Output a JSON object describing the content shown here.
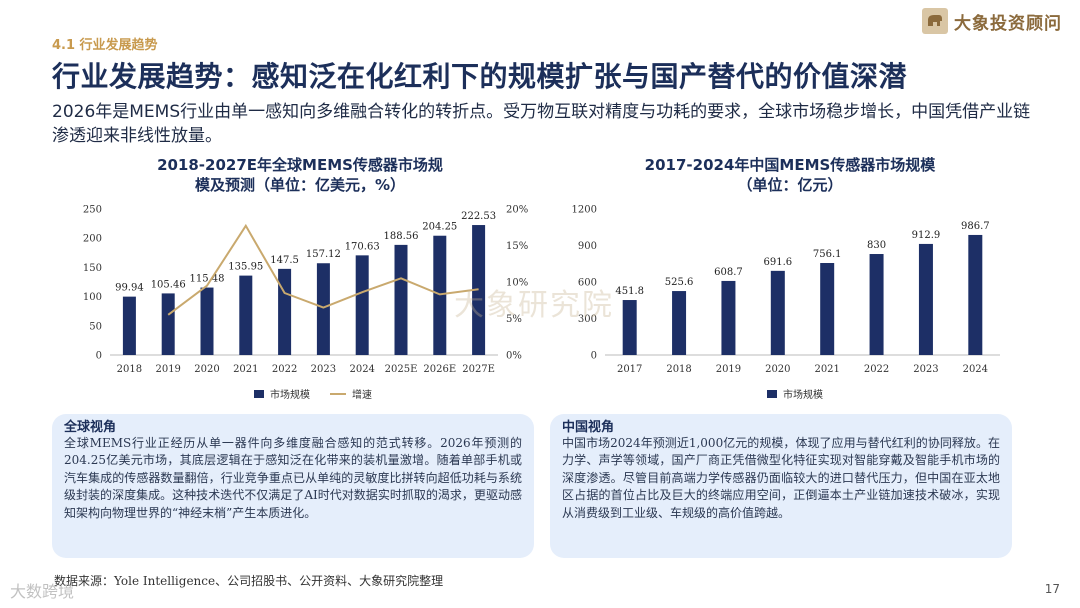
{
  "header": {
    "section": "4.1 行业发展趋势",
    "title": "行业发展趋势：感知泛在化红利下的规模扩张与国产替代的价值深潜",
    "subtitle": "2026年是MEMS行业由单一感知向多维融合转化的转折点。受万物互联对精度与功耗的要求，全球市场稳步增长，中国凭借产业链渗透迎来非线性放量。",
    "logo_text": "大象投资顾问"
  },
  "watermark": "大象研究院",
  "corner_watermark": "大数跨境",
  "chart_data": [
    {
      "type": "bar",
      "title_line1": "2018-2027E年全球MEMS传感器市场规",
      "title_line2": "模及预测（单位：亿美元，%）",
      "categories": [
        "2018",
        "2019",
        "2020",
        "2021",
        "2022",
        "2023",
        "2024",
        "2025E",
        "2026E",
        "2027E"
      ],
      "series": [
        {
          "name": "市场规模",
          "values": [
            99.94,
            105.46,
            115.48,
            135.95,
            147.5,
            157.12,
            170.63,
            188.56,
            204.25,
            222.53
          ],
          "labels": [
            "99.94",
            "105.46",
            "115.48",
            "135.95",
            "147.5",
            "157.12",
            "170.63",
            "188.56",
            "204.25",
            "222.53"
          ]
        },
        {
          "name": "增速",
          "values": [
            null,
            5.5,
            9.5,
            17.7,
            8.5,
            6.5,
            8.6,
            10.5,
            8.3,
            9.0
          ]
        }
      ],
      "ylim": [
        0,
        250
      ],
      "yticks": [
        "0",
        "50",
        "100",
        "150",
        "200",
        "250"
      ],
      "y2lim": [
        0,
        20
      ],
      "y2ticks": [
        "0%",
        "5%",
        "10%",
        "15%",
        "20%"
      ],
      "colors": {
        "bar": "#1d2f66",
        "line": "#c9a96e"
      }
    },
    {
      "type": "bar",
      "title_line1": "2017-2024年中国MEMS传感器市场规模",
      "title_line2": "（单位：亿元）",
      "categories": [
        "2017",
        "2018",
        "2019",
        "2020",
        "2021",
        "2022",
        "2023",
        "2024"
      ],
      "series": [
        {
          "name": "市场规模",
          "values": [
            451.8,
            525.6,
            608.7,
            691.6,
            756.1,
            830,
            912.9,
            986.7
          ],
          "labels": [
            "451.8",
            "525.6",
            "608.7",
            "691.6",
            "756.1",
            "830",
            "912.9",
            "986.7"
          ]
        }
      ],
      "ylim": [
        0,
        1200
      ],
      "yticks": [
        "0",
        "300",
        "600",
        "900",
        "1200"
      ],
      "colors": {
        "bar": "#1d2f66"
      }
    }
  ],
  "legend1": {
    "bar": "市场规模",
    "line": "增速"
  },
  "legend2": {
    "bar": "市场规模"
  },
  "panels": {
    "left": {
      "title": "全球视角",
      "body": "全球MEMS行业正经历从单一器件向多维度融合感知的范式转移。2026年预测的204.25亿美元市场，其底层逻辑在于感知泛在化带来的装机量激增。随着单部手机或汽车集成的传感器数量翻倍，行业竞争重点已从单纯的灵敏度比拼转向超低功耗与系统级封装的深度集成。这种技术迭代不仅满足了AI时代对数据实时抓取的渴求，更驱动感知架构向物理世界的“神经末梢”产生本质进化。"
    },
    "right": {
      "title": "中国视角",
      "body": "中国市场2024年预测近1,000亿元的规模，体现了应用与替代红利的协同释放。在力学、声学等领域，国产厂商正凭借微型化特征实现对智能穿戴及智能手机市场的深度渗透。尽管目前高端力学传感器仍面临较大的进口替代压力，但中国在亚太地区占据的首位占比及巨大的终端应用空间，正倒逼本土产业链加速技术破冰，实现从消费级到工业级、车规级的高价值跨越。"
    }
  },
  "footer": {
    "source": "数据来源：Yole Intelligence、公司招股书、公开资料、大象研究院整理",
    "page": "17"
  }
}
